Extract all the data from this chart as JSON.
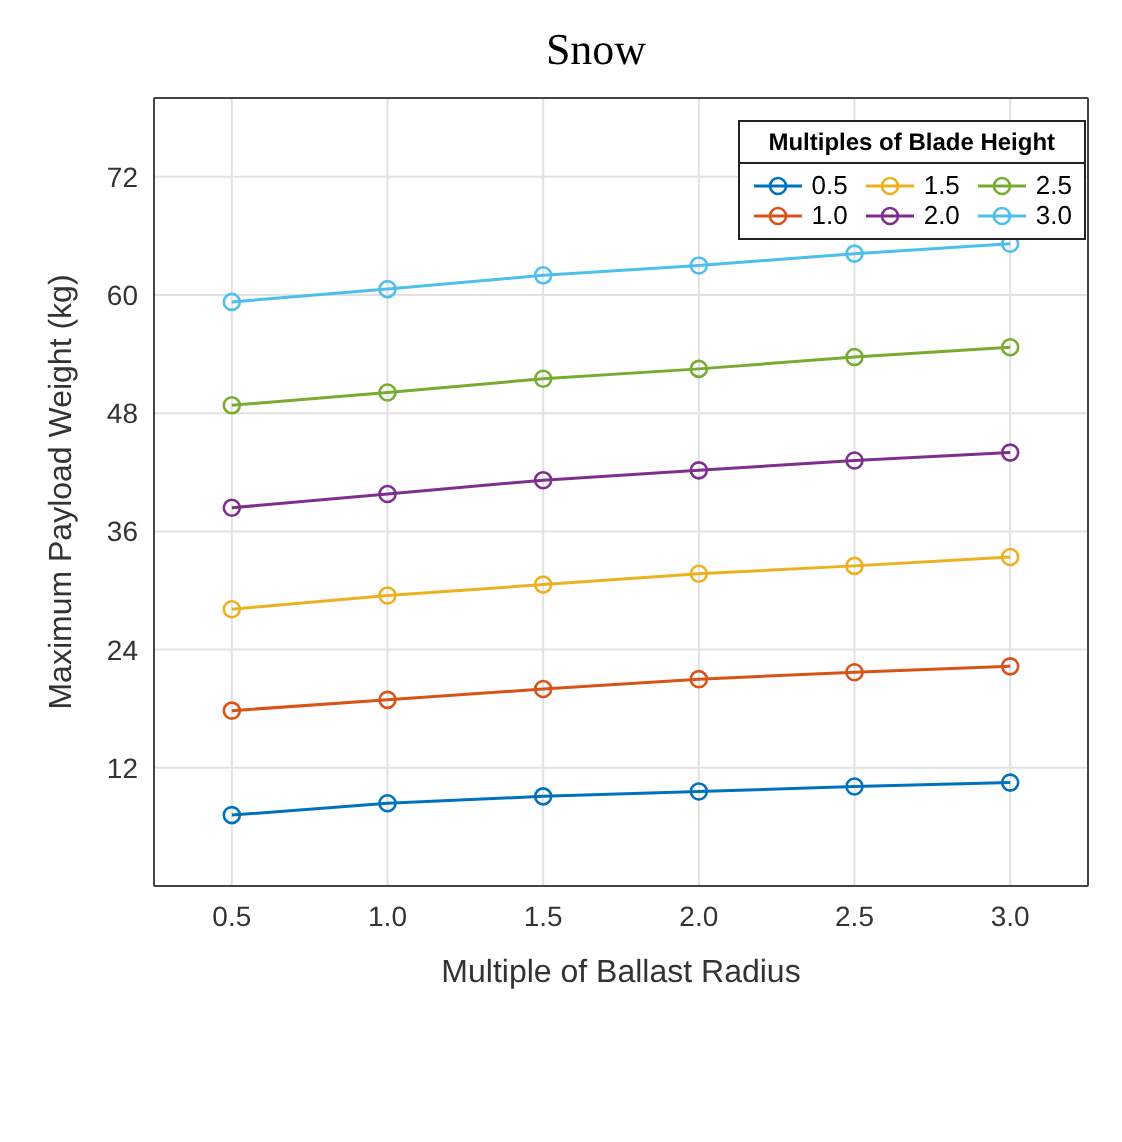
{
  "chart_data": {
    "type": "line",
    "title": "Snow",
    "xlabel": "Multiple of Ballast Radius",
    "ylabel": "Maximum Payload Weight (kg)",
    "legend_title": "Multiples of Blade Height",
    "x": [
      0.5,
      1.0,
      1.5,
      2.0,
      2.5,
      3.0
    ],
    "series": [
      {
        "name": "0.5",
        "color": "#0072bd",
        "values": [
          7.2,
          8.4,
          9.1,
          9.6,
          10.1,
          10.5
        ]
      },
      {
        "name": "1.0",
        "color": "#d95319",
        "values": [
          17.8,
          18.9,
          20.0,
          21.0,
          21.7,
          22.3
        ]
      },
      {
        "name": "1.5",
        "color": "#edb120",
        "values": [
          28.1,
          29.5,
          30.6,
          31.7,
          32.5,
          33.4
        ]
      },
      {
        "name": "2.0",
        "color": "#7e2f8e",
        "values": [
          38.4,
          39.8,
          41.2,
          42.2,
          43.2,
          44.0
        ]
      },
      {
        "name": "2.5",
        "color": "#77ac30",
        "values": [
          48.8,
          50.1,
          51.5,
          52.5,
          53.7,
          54.7
        ]
      },
      {
        "name": "3.0",
        "color": "#4dbeee",
        "values": [
          59.3,
          60.6,
          62.0,
          63.0,
          64.2,
          65.2
        ]
      }
    ],
    "xlim": [
      0.25,
      3.25
    ],
    "xticks": [
      {
        "value": 0.5,
        "label": "0.5"
      },
      {
        "value": 1,
        "label": "1.0"
      },
      {
        "value": 1.5,
        "label": "1.5"
      },
      {
        "value": 2,
        "label": "2.0"
      },
      {
        "value": 2.5,
        "label": "2.5"
      },
      {
        "value": 3,
        "label": "3.0"
      }
    ],
    "ylim": [
      0,
      80
    ],
    "yticks": [
      12,
      24,
      36,
      48,
      60,
      72
    ],
    "grid": true,
    "legend": "top right",
    "marker": "circle",
    "line_style": "solid"
  }
}
